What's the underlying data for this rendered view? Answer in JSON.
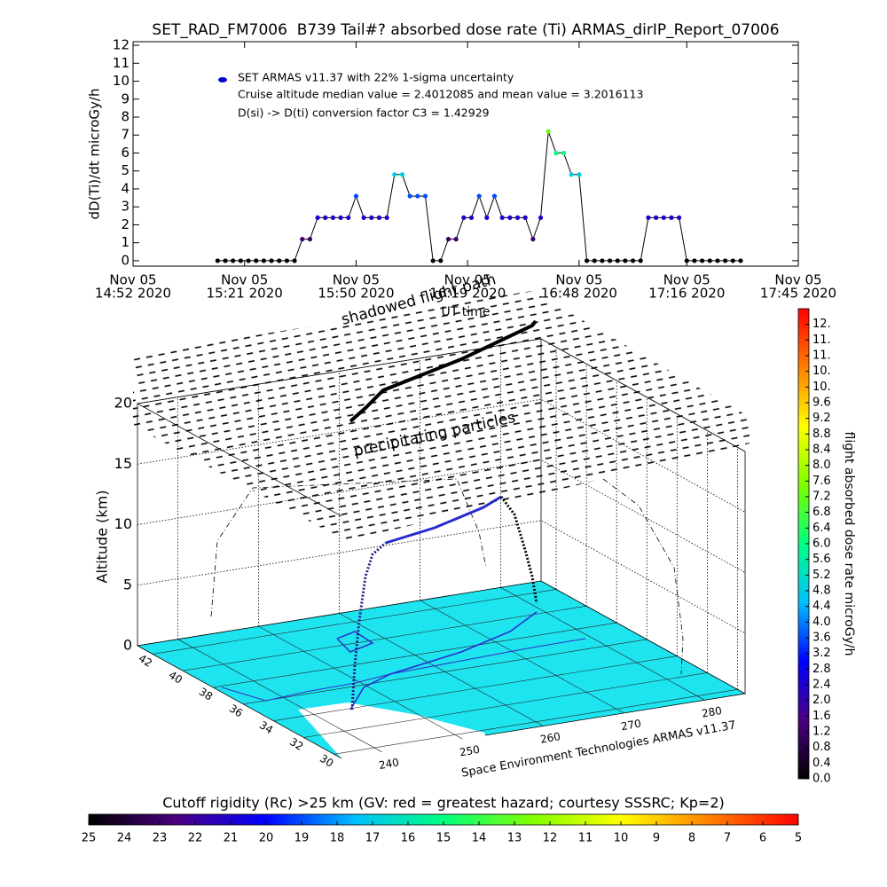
{
  "chart_data": [
    {
      "type": "line",
      "title": "SET_RAD_FM7006  B739 Tail#? absorbed dose rate (Ti) ARMAS_dirIP_Report_07006",
      "xlabel": "UT time",
      "ylabel": "dD(Ti)/dt microGy/h",
      "annotations": [
        "Cruise altitude median value = 2.4012085 and mean value = 3.2016113",
        "D(si) -> D(ti) conversion factor C3 = 1.42929"
      ],
      "xlim": [
        "2020-11-05 14:52",
        "2020-11-05 17:45"
      ],
      "xticks": [
        {
          "value": "2020-11-05 14:52",
          "label": [
            "Nov 05",
            "14:52 2020"
          ]
        },
        {
          "value": "2020-11-05 15:21",
          "label": [
            "Nov 05",
            "15:21 2020"
          ]
        },
        {
          "value": "2020-11-05 15:50",
          "label": [
            "Nov 05",
            "15:50 2020"
          ]
        },
        {
          "value": "2020-11-05 16:19",
          "label": [
            "Nov 05",
            "16:19 2020"
          ]
        },
        {
          "value": "2020-11-05 16:48",
          "label": [
            "Nov 05",
            "16:48 2020"
          ]
        },
        {
          "value": "2020-11-05 17:16",
          "label": [
            "Nov 05",
            "17:16 2020"
          ]
        },
        {
          "value": "2020-11-05 17:45",
          "label": [
            "Nov 05",
            "17:45 2020"
          ]
        }
      ],
      "ylim": [
        -0.3,
        12.2
      ],
      "yticks": [
        0,
        1,
        2,
        3,
        4,
        5,
        6,
        7,
        8,
        9,
        10,
        11,
        12
      ],
      "x": [
        "2020-11-05 15:14",
        "2020-11-05 15:16",
        "2020-11-05 15:18",
        "2020-11-05 15:20",
        "2020-11-05 15:22",
        "2020-11-05 15:24",
        "2020-11-05 15:26",
        "2020-11-05 15:28",
        "2020-11-05 15:30",
        "2020-11-05 15:32",
        "2020-11-05 15:34",
        "2020-11-05 15:36",
        "2020-11-05 15:38",
        "2020-11-05 15:40",
        "2020-11-05 15:42",
        "2020-11-05 15:44",
        "2020-11-05 15:46",
        "2020-11-05 15:48",
        "2020-11-05 15:50",
        "2020-11-05 15:52",
        "2020-11-05 15:54",
        "2020-11-05 15:56",
        "2020-11-05 15:58",
        "2020-11-05 16:00",
        "2020-11-05 16:02",
        "2020-11-05 16:04",
        "2020-11-05 16:06",
        "2020-11-05 16:08",
        "2020-11-05 16:10",
        "2020-11-05 16:12",
        "2020-11-05 16:14",
        "2020-11-05 16:16",
        "2020-11-05 16:18",
        "2020-11-05 16:20",
        "2020-11-05 16:22",
        "2020-11-05 16:24",
        "2020-11-05 16:26",
        "2020-11-05 16:28",
        "2020-11-05 16:30",
        "2020-11-05 16:32",
        "2020-11-05 16:34",
        "2020-11-05 16:36",
        "2020-11-05 16:38",
        "2020-11-05 16:40",
        "2020-11-05 16:42",
        "2020-11-05 16:44",
        "2020-11-05 16:46",
        "2020-11-05 16:48",
        "2020-11-05 16:50",
        "2020-11-05 16:52",
        "2020-11-05 16:54",
        "2020-11-05 16:56",
        "2020-11-05 16:58",
        "2020-11-05 17:00",
        "2020-11-05 17:02",
        "2020-11-05 17:04",
        "2020-11-05 17:06",
        "2020-11-05 17:08",
        "2020-11-05 17:10",
        "2020-11-05 17:12",
        "2020-11-05 17:14",
        "2020-11-05 17:16",
        "2020-11-05 17:18",
        "2020-11-05 17:20",
        "2020-11-05 17:22",
        "2020-11-05 17:24",
        "2020-11-05 17:26",
        "2020-11-05 17:28",
        "2020-11-05 17:30"
      ],
      "series": [
        {
          "name": "SET ARMAS v11.37 with 22% 1-sigma uncertainty",
          "color": "#0000cc",
          "line_color": "#000000",
          "values": [
            0,
            0,
            0,
            0,
            0,
            0,
            0,
            0,
            0,
            0,
            0,
            1.2,
            1.2,
            2.4,
            2.4,
            2.4,
            2.4,
            2.4,
            3.6,
            2.4,
            2.4,
            2.4,
            2.4,
            4.8,
            4.8,
            3.6,
            3.6,
            3.6,
            0,
            0,
            1.2,
            1.2,
            2.4,
            2.4,
            3.6,
            2.4,
            3.6,
            2.4,
            2.4,
            2.4,
            2.4,
            1.2,
            2.4,
            7.2,
            6.0,
            6.0,
            4.8,
            4.8,
            0,
            0,
            0,
            0,
            0,
            0,
            0,
            0,
            2.4,
            2.4,
            2.4,
            2.4,
            2.4,
            0,
            0,
            0,
            0,
            0,
            0,
            0,
            0
          ]
        }
      ]
    },
    {
      "type": "surface3d",
      "zlabel": "Altitude (km)",
      "annotations": [
        "precipitating particles",
        "shadowed flight path",
        "Space Environment Technologies ARMAS v11.37"
      ],
      "zlim": [
        0,
        20
      ],
      "zticks": [
        0,
        5,
        10,
        15,
        20
      ],
      "ylim": [
        43,
        29.5
      ],
      "yticks": [
        42,
        40,
        38,
        36,
        34,
        32,
        30
      ],
      "xlim": [
        235,
        285
      ],
      "xticks": [
        240,
        250,
        260,
        270,
        280
      ],
      "floor_color": "#1ee4f0",
      "path_color": "#2a2ad0",
      "shadow_color": "#000000",
      "particle_color": "#a8d12a"
    },
    {
      "type": "colorbar",
      "orientation": "vertical",
      "label": "flight absorbed dose rate microGy/h",
      "clim": [
        0,
        12
      ],
      "ticks": [
        {
          "value": 0,
          "label": "0.0"
        },
        0.4,
        0.8,
        1.2,
        1.6,
        {
          "value": 2,
          "label": "2.0"
        },
        2.4,
        2.8,
        3.2,
        3.6,
        {
          "value": 4,
          "label": "4.0"
        },
        4.4,
        4.8,
        5.2,
        5.6,
        {
          "value": 6,
          "label": "6.0"
        },
        6.4,
        6.8,
        7.2,
        7.6,
        {
          "value": 8,
          "label": "8.0"
        },
        8.4,
        8.8,
        9.2,
        9.6,
        {
          "value": 10,
          "label": "10."
        },
        {
          "value": 10.4,
          "label": "10."
        },
        {
          "value": 10.8,
          "label": "11."
        },
        {
          "value": 11.2,
          "label": "11."
        },
        {
          "value": 11.6,
          "label": "12."
        }
      ],
      "colorscale": [
        "#000000",
        "#4b0082",
        "#0000ff",
        "#00bfff",
        "#00ff80",
        "#80ff00",
        "#ffff00",
        "#ff8000",
        "#ff0000"
      ]
    },
    {
      "type": "colorbar",
      "orientation": "horizontal",
      "title": "Cutoff rigidity (Rc) >25 km (GV: red = greatest hazard; courtesy SSSRC; Kp=2)",
      "clim": [
        25,
        5
      ],
      "ticks": [
        25,
        24,
        23,
        22,
        21,
        20,
        19,
        18,
        17,
        16,
        15,
        14,
        13,
        12,
        11,
        10,
        9,
        8,
        7,
        6,
        5
      ],
      "colorscale": [
        "#000000",
        "#4b0082",
        "#0000ff",
        "#00bfff",
        "#00ff80",
        "#80ff00",
        "#ffff00",
        "#ff8000",
        "#ff0000"
      ]
    }
  ]
}
